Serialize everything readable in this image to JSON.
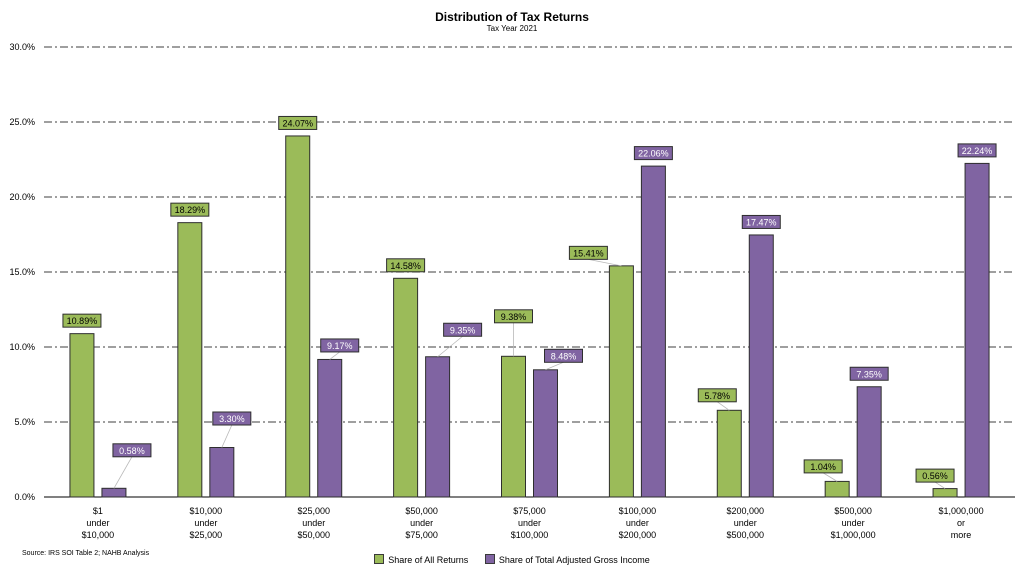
{
  "chart_data": {
    "type": "bar",
    "title": "Distribution of Tax Returns",
    "subtitle": "Tax Year 2021",
    "source": "Source: IRS SOI Table 2; NAHB Analysis",
    "categories": [
      [
        "$1",
        "under",
        "$10,000"
      ],
      [
        "$10,000",
        "under",
        "$25,000"
      ],
      [
        "$25,000",
        "under",
        "$50,000"
      ],
      [
        "$50,000",
        "under",
        "$75,000"
      ],
      [
        "$75,000",
        "under",
        "$100,000"
      ],
      [
        "$100,000",
        "under",
        "$200,000"
      ],
      [
        "$200,000",
        "under",
        "$500,000"
      ],
      [
        "$500,000",
        "under",
        "$1,000,000"
      ],
      [
        "$1,000,000",
        "or",
        "more"
      ]
    ],
    "series": [
      {
        "name": "Share of All Returns",
        "color": "#9bbb59",
        "values": [
          10.89,
          18.29,
          24.07,
          14.58,
          9.38,
          15.41,
          5.78,
          1.04,
          0.56
        ],
        "labels": [
          "10.89%",
          "18.29%",
          "24.07%",
          "14.58%",
          "9.38%",
          "15.41%",
          "5.78%",
          "1.04%",
          "0.56%"
        ]
      },
      {
        "name": "Share of Total Adjusted Gross Income",
        "color": "#8064a2",
        "values": [
          0.58,
          3.3,
          9.17,
          9.35,
          8.48,
          22.06,
          17.47,
          7.35,
          22.24
        ],
        "labels": [
          "0.58%",
          "3.30%",
          "9.17%",
          "9.35%",
          "8.48%",
          "22.06%",
          "17.47%",
          "7.35%",
          "22.24%"
        ]
      }
    ],
    "yticks": [
      0,
      5,
      10,
      15,
      20,
      25,
      30
    ],
    "ytick_labels": [
      "0.0%",
      "5.0%",
      "10.0%",
      "15.0%",
      "20.0%",
      "25.0%",
      "30.0%"
    ],
    "ylim": [
      0,
      30
    ],
    "grid": true,
    "legend": "bottom"
  }
}
